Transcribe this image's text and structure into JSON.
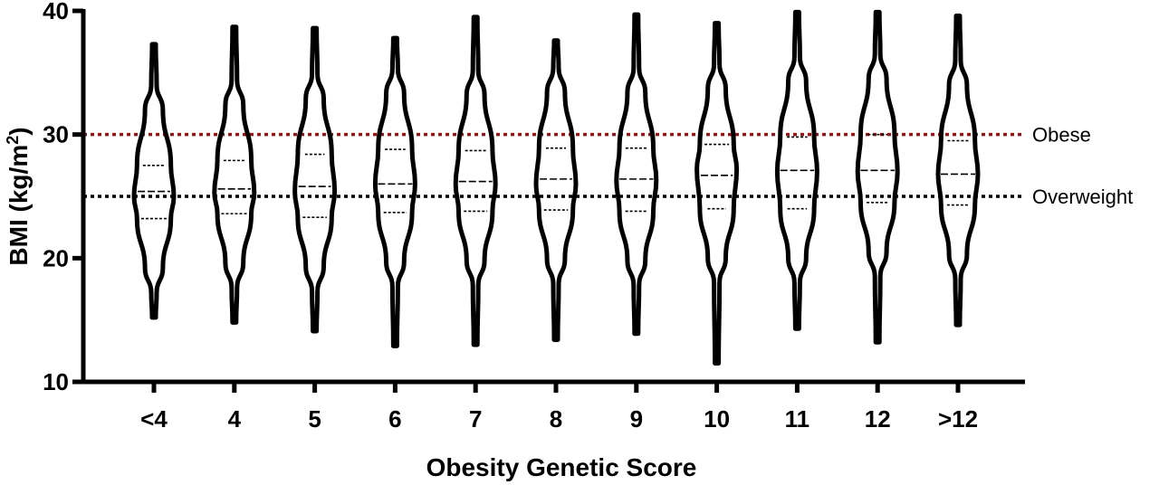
{
  "chart_data": {
    "type": "violin",
    "xlabel": "Obesity Genetic Score",
    "ylabel_main": "BMI (kg/m",
    "ylabel_sup": "2",
    "ylabel_tail": ")",
    "ylim": [
      10,
      40
    ],
    "yticks": [
      10,
      20,
      30,
      40
    ],
    "categories": [
      "<4",
      "4",
      "5",
      "6",
      "7",
      "8",
      "9",
      "10",
      "11",
      "12",
      ">12"
    ],
    "violins": [
      {
        "min": 15.2,
        "max": 37.3,
        "q1": 23.2,
        "median": 25.4,
        "q3": 27.5,
        "widest": 25.0
      },
      {
        "min": 14.8,
        "max": 38.7,
        "q1": 23.6,
        "median": 25.6,
        "q3": 27.9,
        "widest": 25.3
      },
      {
        "min": 14.1,
        "max": 38.6,
        "q1": 23.3,
        "median": 25.8,
        "q3": 28.4,
        "widest": 25.4
      },
      {
        "min": 12.9,
        "max": 37.8,
        "q1": 23.7,
        "median": 26.0,
        "q3": 28.8,
        "widest": 26.0
      },
      {
        "min": 13.0,
        "max": 39.5,
        "q1": 23.8,
        "median": 26.2,
        "q3": 28.7,
        "widest": 26.0
      },
      {
        "min": 13.4,
        "max": 37.6,
        "q1": 23.9,
        "median": 26.4,
        "q3": 28.9,
        "widest": 26.0
      },
      {
        "min": 13.9,
        "max": 39.7,
        "q1": 23.8,
        "median": 26.4,
        "q3": 28.9,
        "widest": 26.3
      },
      {
        "min": 11.5,
        "max": 39.0,
        "q1": 24.0,
        "median": 26.7,
        "q3": 29.2,
        "widest": 27.2
      },
      {
        "min": 14.3,
        "max": 39.9,
        "q1": 24.0,
        "median": 27.1,
        "q3": 29.8,
        "widest": 27.0
      },
      {
        "min": 13.2,
        "max": 39.9,
        "q1": 24.5,
        "median": 27.1,
        "q3": 30.0,
        "widest": 27.0
      },
      {
        "min": 14.6,
        "max": 39.6,
        "q1": 24.3,
        "median": 26.8,
        "q3": 29.5,
        "widest": 26.8
      }
    ],
    "reference_lines": [
      {
        "y": 30,
        "label": "Obese",
        "color": "#8b1a1a"
      },
      {
        "y": 25,
        "label": "Overweight",
        "color": "#000000"
      }
    ],
    "grid": false,
    "legend": "none"
  }
}
